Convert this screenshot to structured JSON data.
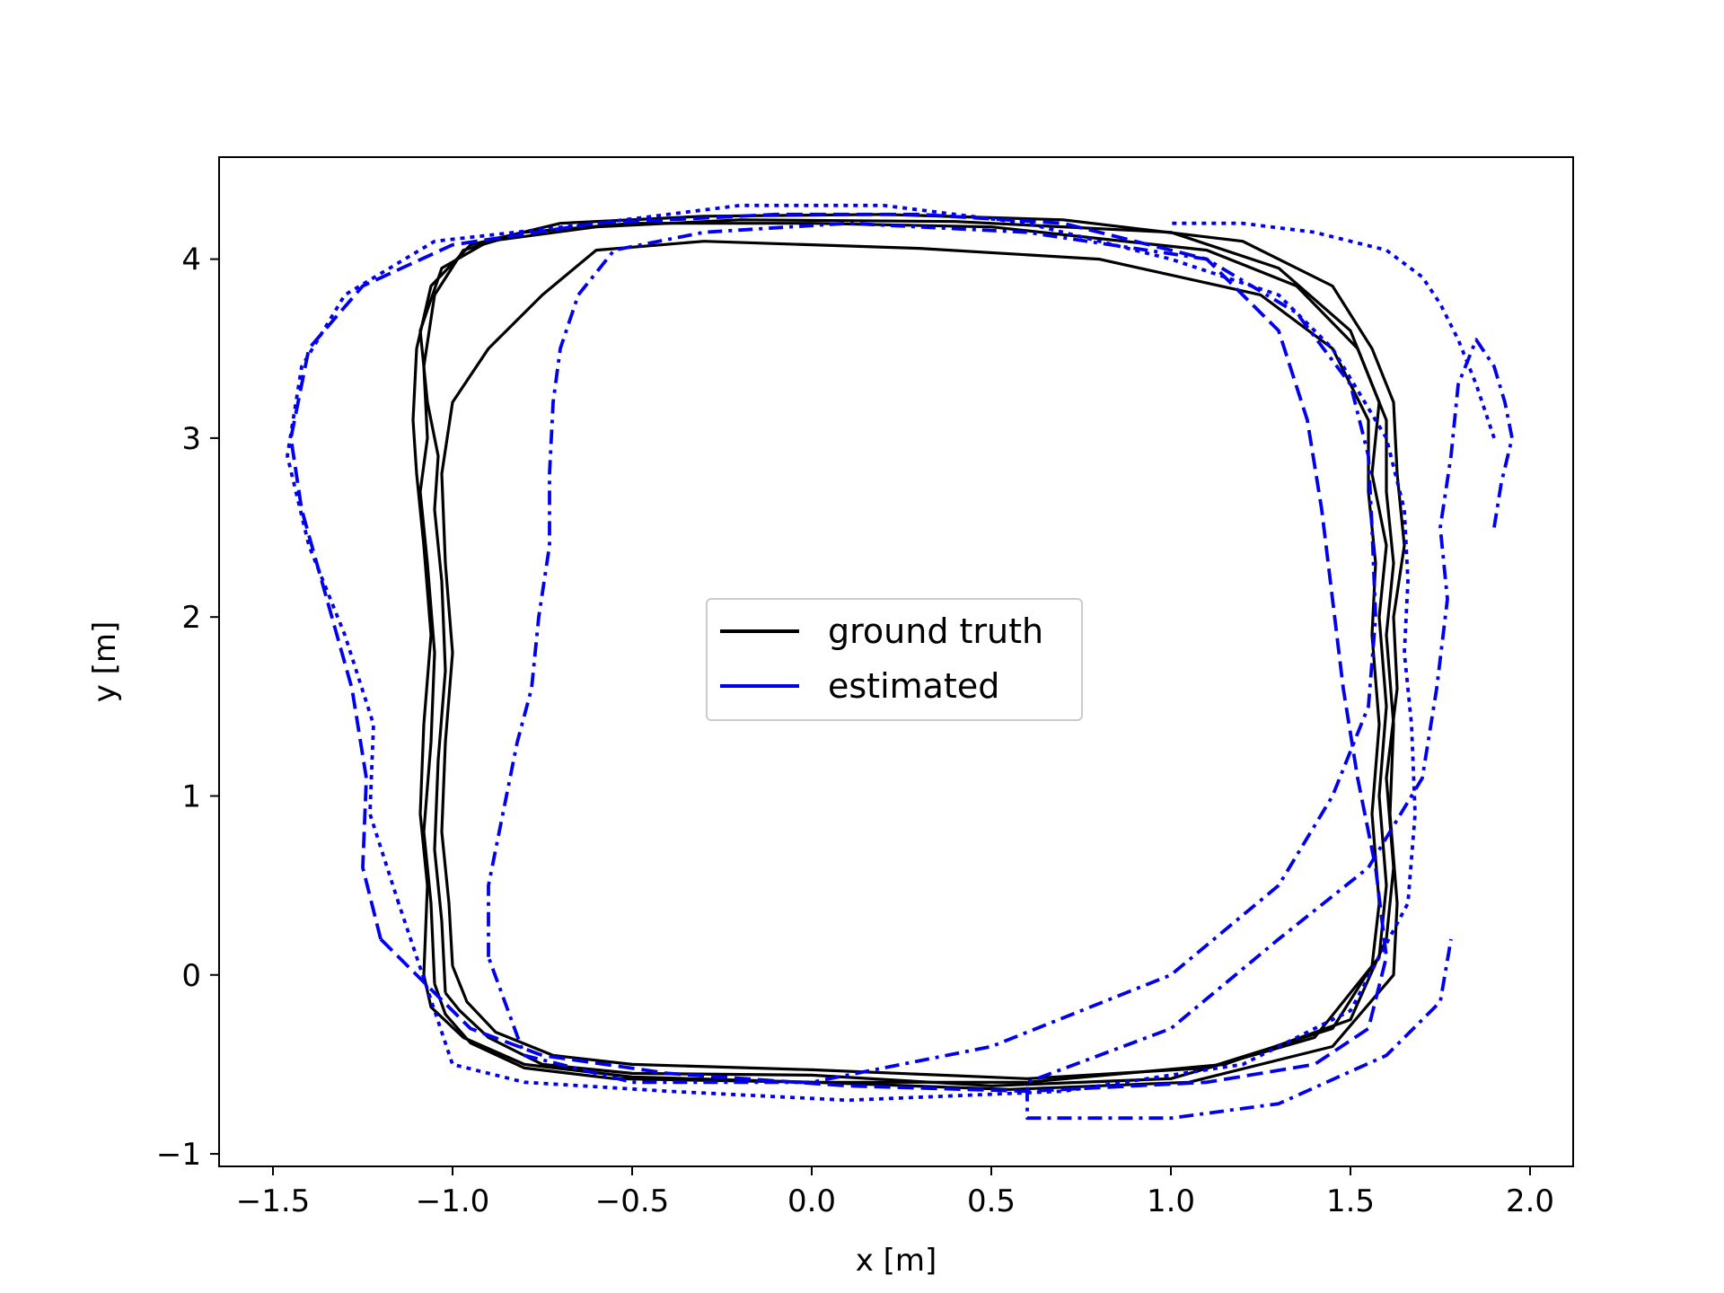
{
  "chart_data": {
    "type": "line",
    "title": "",
    "xlabel": "x [m]",
    "ylabel": "y [m]",
    "xlim": [
      -1.65,
      2.12
    ],
    "ylim": [
      -1.07,
      4.57
    ],
    "xticks": [
      -1.5,
      -1.0,
      -0.5,
      0.0,
      0.5,
      1.0,
      1.5,
      2.0
    ],
    "xtick_labels": [
      "−1.5",
      "−1.0",
      "−0.5",
      "0.0",
      "0.5",
      "1.0",
      "1.5",
      "2.0"
    ],
    "yticks": [
      -1,
      0,
      1,
      2,
      3,
      4
    ],
    "ytick_labels": [
      "−1",
      "0",
      "1",
      "2",
      "3",
      "4"
    ],
    "grid": false,
    "legend_position": "center",
    "legend": [
      {
        "label": "ground truth",
        "color": "#000000",
        "style": "solid"
      },
      {
        "label": "estimated",
        "color": "#0000ee",
        "style": "solid"
      }
    ],
    "series": [
      {
        "legend_index": 0,
        "color": "#000000",
        "dash": "solid",
        "x": [
          -1.02,
          -1.03,
          -1.05,
          -1.04,
          -1.02,
          -1.03,
          -1.05,
          -1.04,
          -1.07,
          -1.09,
          -1.03,
          -0.9,
          -0.6,
          -0.2,
          0.4,
          1.0,
          1.3,
          1.5,
          1.58,
          1.56,
          1.6,
          1.58,
          1.6,
          1.58,
          1.6,
          1.58,
          1.4,
          1.0,
          0.5,
          0.0,
          -0.5,
          -0.75,
          -0.9,
          -0.98,
          -1.02
        ],
        "y": [
          -0.1,
          0.3,
          0.7,
          1.2,
          1.7,
          2.2,
          2.6,
          2.9,
          3.2,
          3.6,
          3.95,
          4.1,
          4.18,
          4.22,
          4.21,
          4.15,
          3.95,
          3.6,
          3.2,
          2.8,
          2.4,
          2.0,
          1.5,
          1.0,
          0.5,
          0.1,
          -0.35,
          -0.58,
          -0.62,
          -0.56,
          -0.55,
          -0.5,
          -0.35,
          -0.2,
          -0.1
        ]
      },
      {
        "legend_index": 0,
        "color": "#000000",
        "dash": "solid",
        "x": [
          -1.05,
          -1.06,
          -1.08,
          -1.06,
          -1.05,
          -1.07,
          -1.09,
          -1.07,
          -1.08,
          -1.05,
          -0.97,
          -0.8,
          -0.5,
          0.0,
          0.5,
          1.1,
          1.35,
          1.52,
          1.6,
          1.6,
          1.62,
          1.6,
          1.62,
          1.61,
          1.63,
          1.62,
          1.45,
          1.05,
          0.55,
          0.0,
          -0.55,
          -0.8,
          -0.95,
          -1.02,
          -1.05
        ],
        "y": [
          -0.05,
          0.4,
          0.8,
          1.3,
          1.8,
          2.3,
          2.7,
          3.0,
          3.4,
          3.8,
          4.05,
          4.15,
          4.2,
          4.2,
          4.18,
          4.05,
          3.85,
          3.5,
          3.1,
          2.7,
          2.3,
          1.9,
          1.4,
          0.9,
          0.4,
          0.0,
          -0.4,
          -0.6,
          -0.64,
          -0.6,
          -0.58,
          -0.52,
          -0.38,
          -0.22,
          -0.05
        ]
      },
      {
        "legend_index": 0,
        "color": "#000000",
        "dash": "solid",
        "x": [
          -1.08,
          -1.07,
          -1.09,
          -1.08,
          -1.06,
          -1.08,
          -1.1,
          -1.11,
          -1.1,
          -1.06,
          -0.95,
          -0.7,
          -0.3,
          0.2,
          0.7,
          1.2,
          1.45,
          1.56,
          1.62,
          1.63,
          1.65,
          1.62,
          1.63,
          1.6,
          1.62,
          1.6,
          1.5,
          1.15,
          0.6,
          0.0,
          -0.5,
          -0.8,
          -0.97,
          -1.06,
          -1.08
        ],
        "y": [
          0.0,
          0.5,
          0.9,
          1.4,
          1.9,
          2.4,
          2.8,
          3.1,
          3.5,
          3.85,
          4.08,
          4.2,
          4.24,
          4.25,
          4.22,
          4.1,
          3.85,
          3.5,
          3.2,
          2.8,
          2.4,
          2.0,
          1.6,
          1.1,
          0.6,
          0.2,
          -0.25,
          -0.5,
          -0.6,
          -0.6,
          -0.57,
          -0.5,
          -0.35,
          -0.18,
          0.0
        ]
      },
      {
        "legend_index": 0,
        "color": "#000000",
        "dash": "solid",
        "x": [
          -1.0,
          -1.01,
          -1.03,
          -1.02,
          -1.0,
          -1.02,
          -1.03,
          -1.0,
          -0.9,
          -0.75,
          -0.6,
          -0.3,
          0.3,
          0.8,
          1.25,
          1.45,
          1.55,
          1.55,
          1.57,
          1.56,
          1.58,
          1.56,
          1.58,
          1.56,
          1.45,
          1.1,
          0.6,
          0.0,
          -0.5,
          -0.72,
          -0.88,
          -0.96,
          -1.0
        ],
        "y": [
          0.05,
          0.4,
          0.8,
          1.3,
          1.8,
          2.3,
          2.8,
          3.2,
          3.5,
          3.8,
          4.05,
          4.1,
          4.06,
          4.0,
          3.8,
          3.5,
          3.1,
          2.7,
          2.3,
          1.9,
          1.4,
          0.9,
          0.4,
          0.05,
          -0.3,
          -0.52,
          -0.58,
          -0.53,
          -0.5,
          -0.45,
          -0.32,
          -0.15,
          0.05
        ]
      },
      {
        "legend_index": 1,
        "color": "#0000ee",
        "dash": "dashed",
        "x": [
          -1.2,
          -1.25,
          -1.24,
          -1.28,
          -1.35,
          -1.42,
          -1.45,
          -1.4,
          -1.25,
          -1.0,
          -0.6,
          -0.1,
          0.3,
          0.7,
          1.1,
          1.3,
          1.38,
          1.42,
          1.45,
          1.48,
          1.52,
          1.57,
          1.6,
          1.55,
          1.4,
          1.1,
          0.6,
          0.1,
          -0.4,
          -0.75,
          -0.95,
          -1.1,
          -1.2
        ],
        "y": [
          0.2,
          0.6,
          1.1,
          1.6,
          2.1,
          2.6,
          3.0,
          3.5,
          3.85,
          4.08,
          4.2,
          4.25,
          4.25,
          4.2,
          4.0,
          3.6,
          3.1,
          2.6,
          2.1,
          1.6,
          1.1,
          0.6,
          0.1,
          -0.3,
          -0.5,
          -0.6,
          -0.65,
          -0.62,
          -0.55,
          -0.45,
          -0.3,
          0.0,
          0.2
        ]
      },
      {
        "legend_index": 1,
        "color": "#0000ee",
        "dash": "dotted",
        "x": [
          -1.15,
          -1.23,
          -1.22,
          -1.3,
          -1.4,
          -1.46,
          -1.42,
          -1.3,
          -1.05,
          -0.6,
          -0.2,
          0.2,
          0.6,
          1.0,
          1.3,
          1.45,
          1.6,
          1.65,
          1.66,
          1.65,
          1.67,
          1.68,
          1.66,
          1.5,
          1.2,
          0.7,
          0.1,
          -0.4,
          -0.8,
          -1.0,
          -1.15
        ],
        "y": [
          0.4,
          0.9,
          1.4,
          1.9,
          2.4,
          2.9,
          3.4,
          3.8,
          4.1,
          4.2,
          4.3,
          4.3,
          4.2,
          4.0,
          3.8,
          3.5,
          3.0,
          2.6,
          2.2,
          1.8,
          1.4,
          0.9,
          0.4,
          -0.2,
          -0.5,
          -0.65,
          -0.7,
          -0.65,
          -0.6,
          -0.5,
          0.4
        ]
      },
      {
        "legend_index": 1,
        "color": "#0000ee",
        "dash": "dashdot",
        "x": [
          -0.9,
          -0.9,
          -0.85,
          -0.82,
          -0.78,
          -0.76,
          -0.73,
          -0.73,
          -0.72,
          -0.7,
          -0.65,
          -0.55,
          -0.3,
          0.1,
          0.6,
          1.1,
          1.35,
          1.5,
          1.55,
          1.56,
          1.57,
          1.55,
          1.45,
          1.3,
          1.0,
          0.5,
          0.0,
          -0.5,
          -0.8,
          -0.9
        ],
        "y": [
          0.1,
          0.5,
          1.0,
          1.3,
          1.6,
          2.0,
          2.4,
          2.8,
          3.2,
          3.5,
          3.8,
          4.05,
          4.15,
          4.2,
          4.15,
          4.0,
          3.7,
          3.3,
          2.9,
          2.5,
          2.0,
          1.5,
          1.0,
          0.5,
          0.0,
          -0.4,
          -0.6,
          -0.6,
          -0.45,
          0.1
        ]
      },
      {
        "legend_index": 1,
        "color": "#0000ee",
        "dash": "dashdot",
        "x": [
          1.9,
          1.92,
          1.95,
          1.93,
          1.9,
          1.85,
          1.8,
          1.78,
          1.75,
          1.77,
          1.74,
          1.7,
          1.55,
          1.3,
          1.0,
          0.6,
          0.6,
          1.0,
          1.3,
          1.6,
          1.75,
          1.78
        ],
        "y": [
          2.5,
          2.75,
          3.0,
          3.2,
          3.4,
          3.55,
          3.3,
          2.9,
          2.5,
          2.1,
          1.6,
          1.1,
          0.6,
          0.2,
          -0.3,
          -0.6,
          -0.8,
          -0.8,
          -0.72,
          -0.45,
          -0.15,
          0.2
        ]
      },
      {
        "legend_index": 1,
        "color": "#0000ee",
        "dash": "dotted",
        "x": [
          1.9,
          1.85,
          1.8,
          1.75,
          1.7,
          1.6,
          1.4,
          1.2,
          1.0
        ],
        "y": [
          3.0,
          3.3,
          3.55,
          3.75,
          3.9,
          4.05,
          4.15,
          4.2,
          4.2
        ]
      }
    ]
  }
}
